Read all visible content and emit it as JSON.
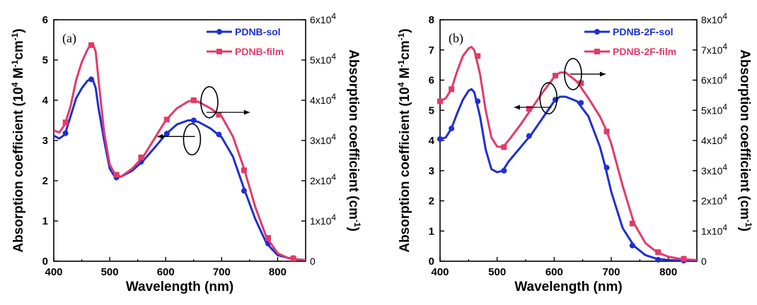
{
  "colors": {
    "sol": "#1f2fd0",
    "film": "#e23a6a",
    "axis": "#000000"
  },
  "chart_data": [
    {
      "type": "line",
      "panel_label": "(a)",
      "xlabel": "Wavelength (nm)",
      "ylabel": {
        "main": "Absorption coefficient (10",
        "sup1": "4",
        "mid": " M",
        "sup2": "-1",
        "tail": "cm",
        "sup3": "-1",
        "end": ")"
      },
      "y2label": {
        "main": "Absorption coefficient (cm",
        "sup": "-1",
        "end": ")"
      },
      "xlim": [
        400,
        850
      ],
      "ylim": [
        0,
        6
      ],
      "y2lim": [
        0,
        60000
      ],
      "x_ticks": [
        400,
        500,
        600,
        700,
        800
      ],
      "x_tick_labels": [
        "400",
        "500",
        "600",
        "700",
        "800"
      ],
      "y_ticks": [
        0,
        1,
        2,
        3,
        4,
        5,
        6
      ],
      "y_tick_labels": [
        "0",
        "1",
        "2",
        "3",
        "4",
        "5",
        "6"
      ],
      "y2_ticks": [
        0,
        10000,
        20000,
        30000,
        40000,
        50000,
        60000
      ],
      "y2_tick_labels": [
        {
          "base": "0",
          "exp": ""
        },
        {
          "base": "1x10",
          "exp": "4"
        },
        {
          "base": "2x10",
          "exp": "4"
        },
        {
          "base": "3x10",
          "exp": "4"
        },
        {
          "base": "4x10",
          "exp": "4"
        },
        {
          "base": "5x10",
          "exp": "4"
        },
        {
          "base": "6x10",
          "exp": "4"
        }
      ],
      "legend_position": "top-right",
      "series": [
        {
          "name": "PDNB-sol",
          "axis": "left",
          "color_key": "sol",
          "marker": "circle",
          "x": [
            400,
            410,
            420,
            430,
            440,
            450,
            460,
            465,
            470,
            475,
            480,
            490,
            500,
            510,
            520,
            540,
            560,
            580,
            600,
            620,
            640,
            650,
            660,
            680,
            700,
            720,
            740,
            760,
            780,
            800,
            820,
            830,
            850
          ],
          "y": [
            3.12,
            3.05,
            3.15,
            3.6,
            4.05,
            4.3,
            4.48,
            4.52,
            4.5,
            4.3,
            3.8,
            3.0,
            2.3,
            2.08,
            2.1,
            2.25,
            2.5,
            2.82,
            3.15,
            3.4,
            3.5,
            3.5,
            3.45,
            3.3,
            3.08,
            2.6,
            1.8,
            1.05,
            0.45,
            0.15,
            0.08,
            0.05,
            0.03
          ],
          "markers_x": [
            421,
            467,
            512,
            556,
            602,
            650,
            695,
            740,
            783,
            828
          ],
          "markers_y": [
            3.18,
            4.52,
            2.08,
            2.47,
            3.17,
            3.5,
            3.15,
            1.75,
            0.44,
            0.08
          ]
        },
        {
          "name": "PDNB-film",
          "axis": "right",
          "color_key": "film",
          "marker": "square",
          "x": [
            400,
            410,
            420,
            430,
            440,
            450,
            460,
            465,
            470,
            475,
            480,
            490,
            500,
            510,
            520,
            540,
            560,
            580,
            600,
            620,
            640,
            650,
            660,
            680,
            700,
            720,
            740,
            760,
            780,
            800,
            820,
            830,
            850
          ],
          "y": [
            32500,
            32000,
            34000,
            38500,
            45000,
            49500,
            52500,
            53700,
            54000,
            52000,
            45000,
            32000,
            24000,
            21500,
            21000,
            23000,
            26000,
            30500,
            35000,
            38000,
            39700,
            40000,
            39500,
            38000,
            36000,
            31000,
            23000,
            13500,
            6000,
            2000,
            700,
            500,
            300
          ],
          "markers_x": [
            421,
            467,
            512,
            556,
            602,
            650,
            695,
            740,
            783,
            828
          ],
          "markers_y": [
            34500,
            53700,
            21500,
            25800,
            35200,
            40000,
            36400,
            22600,
            5800,
            700
          ]
        }
      ],
      "annotations": [
        {
          "type": "ellipse",
          "cx": 647,
          "cy": 3.03,
          "arrow_to_x": 585,
          "arrow_y": 3.1,
          "direction": "left"
        },
        {
          "type": "ellipse",
          "cx": 678,
          "cy": 3.95,
          "arrow_to_x": 750,
          "arrow_y": 3.7,
          "direction": "right"
        }
      ]
    },
    {
      "type": "line",
      "panel_label": "(b)",
      "xlabel": "Wavelength (nm)",
      "ylabel": {
        "main": "Absorption coefficient (10",
        "sup1": "4",
        "mid": " M",
        "sup2": "-1",
        "tail": "cm",
        "sup3": "-1",
        "end": ")"
      },
      "y2label": {
        "main": "Absorption coefficient (cm",
        "sup": "-1",
        "end": ")"
      },
      "xlim": [
        400,
        850
      ],
      "ylim": [
        0,
        8
      ],
      "y2lim": [
        0,
        80000
      ],
      "x_ticks": [
        400,
        500,
        600,
        700,
        800
      ],
      "x_tick_labels": [
        "400",
        "500",
        "600",
        "700",
        "800"
      ],
      "y_ticks": [
        0,
        1,
        2,
        3,
        4,
        5,
        6,
        7,
        8
      ],
      "y_tick_labels": [
        "0",
        "1",
        "2",
        "3",
        "4",
        "5",
        "6",
        "7",
        "8"
      ],
      "y2_ticks": [
        0,
        10000,
        20000,
        30000,
        40000,
        50000,
        60000,
        70000,
        80000
      ],
      "y2_tick_labels": [
        {
          "base": "0",
          "exp": ""
        },
        {
          "base": "1x10",
          "exp": "4"
        },
        {
          "base": "2x10",
          "exp": "4"
        },
        {
          "base": "3x10",
          "exp": "4"
        },
        {
          "base": "4x10",
          "exp": "4"
        },
        {
          "base": "5x10",
          "exp": "4"
        },
        {
          "base": "6x10",
          "exp": "4"
        },
        {
          "base": "7x10",
          "exp": "4"
        },
        {
          "base": "8x10",
          "exp": "4"
        }
      ],
      "legend_position": "top-right",
      "series": [
        {
          "name": "PDNB-2F-sol",
          "axis": "left",
          "color_key": "sol",
          "marker": "circle",
          "x": [
            400,
            410,
            420,
            430,
            440,
            450,
            455,
            460,
            470,
            480,
            490,
            500,
            510,
            520,
            540,
            560,
            580,
            600,
            610,
            620,
            640,
            660,
            680,
            690,
            700,
            720,
            740,
            760,
            780,
            800,
            820,
            840,
            850
          ],
          "y": [
            4.05,
            4.1,
            4.4,
            4.9,
            5.35,
            5.65,
            5.7,
            5.6,
            4.8,
            3.7,
            3.05,
            2.95,
            3.0,
            3.3,
            3.75,
            4.2,
            4.75,
            5.3,
            5.45,
            5.45,
            5.3,
            4.8,
            3.8,
            3.1,
            2.3,
            1.1,
            0.5,
            0.2,
            0.08,
            0.04,
            0.02,
            0.01,
            0.01
          ],
          "markers_x": [
            400,
            420,
            466,
            512,
            556,
            602,
            647,
            692,
            737,
            782,
            827
          ],
          "markers_y": [
            4.05,
            4.4,
            5.3,
            3.0,
            4.15,
            5.35,
            5.25,
            3.1,
            0.52,
            0.05,
            0.02
          ]
        },
        {
          "name": "PDNB-2F-film",
          "axis": "right",
          "color_key": "film",
          "marker": "square",
          "x": [
            400,
            410,
            420,
            430,
            440,
            450,
            455,
            460,
            470,
            480,
            490,
            500,
            510,
            520,
            540,
            560,
            580,
            600,
            610,
            620,
            640,
            660,
            680,
            690,
            700,
            720,
            740,
            760,
            780,
            800,
            820,
            840,
            850
          ],
          "y": [
            53000,
            54000,
            57000,
            63000,
            68000,
            70500,
            71000,
            70000,
            62000,
            50000,
            41000,
            38000,
            37800,
            40000,
            45000,
            50500,
            56000,
            61000,
            62500,
            62500,
            59500,
            54000,
            48000,
            44000,
            39000,
            25000,
            12500,
            6000,
            3000,
            1500,
            800,
            500,
            400
          ],
          "markers_x": [
            400,
            420,
            466,
            512,
            556,
            602,
            647,
            692,
            737,
            782,
            827
          ],
          "markers_y": [
            53000,
            57000,
            68000,
            37800,
            50500,
            61500,
            59000,
            43000,
            12500,
            3000,
            800
          ]
        }
      ],
      "annotations": [
        {
          "type": "ellipse",
          "cx": 590,
          "cy": 5.4,
          "arrow_to_x": 530,
          "arrow_y": 5.1,
          "direction": "left"
        },
        {
          "type": "ellipse",
          "cx": 633,
          "cy": 6.2,
          "arrow_to_x": 690,
          "arrow_y": 6.2,
          "direction": "right"
        }
      ]
    }
  ]
}
